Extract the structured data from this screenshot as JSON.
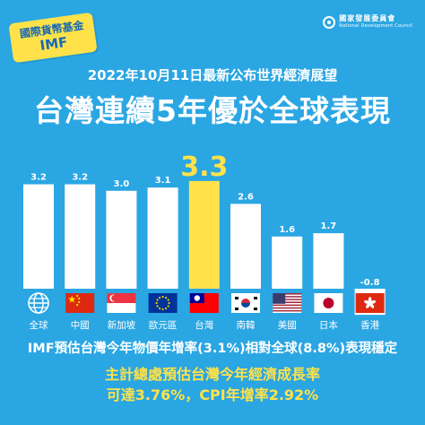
{
  "badge": {
    "line1": "國際貨幣基金",
    "line2": "IMF"
  },
  "organization": {
    "name": "國家發展委員會",
    "english": "National Development Council"
  },
  "subtitle": "2022年10月11日最新公布世界經濟展望",
  "title": "台灣連續5年優於全球表現",
  "footer": {
    "line1": "IMF預估台灣今年物價年增率(3.1%)相對全球(8.8%)表現穩定",
    "line2": "主計總處預估台灣今年經濟成長率",
    "line3": "可達3.76%，CPI年增率2.92%"
  },
  "colors": {
    "background": "#2aa6e3",
    "bar": "#ffffff",
    "highlight": "#ffe24a",
    "label": "#ffffff"
  },
  "chart_data": {
    "type": "bar",
    "title": "",
    "xlabel": "",
    "ylabel": "",
    "categories": [
      "全球",
      "中國",
      "新加坡",
      "歐元區",
      "台灣",
      "南韓",
      "美國",
      "日本",
      "香港"
    ],
    "values": [
      3.2,
      3.2,
      3.0,
      3.1,
      3.3,
      2.6,
      1.6,
      1.7,
      -0.8
    ],
    "value_labels": [
      "3.2",
      "3.2",
      "3.0",
      "3.1",
      "3.3",
      "2.6",
      "1.6",
      "1.7",
      "-0.8"
    ],
    "highlight_category": "台灣",
    "icons": [
      "globe-icon",
      "china-flag-icon",
      "singapore-flag-icon",
      "eu-flag-icon",
      "taiwan-flag-icon",
      "korea-flag-icon",
      "usa-flag-icon",
      "japan-flag-icon",
      "hongkong-flag-icon"
    ],
    "ylim": [
      -0.8,
      3.3
    ],
    "grid": false,
    "legend": "none"
  }
}
